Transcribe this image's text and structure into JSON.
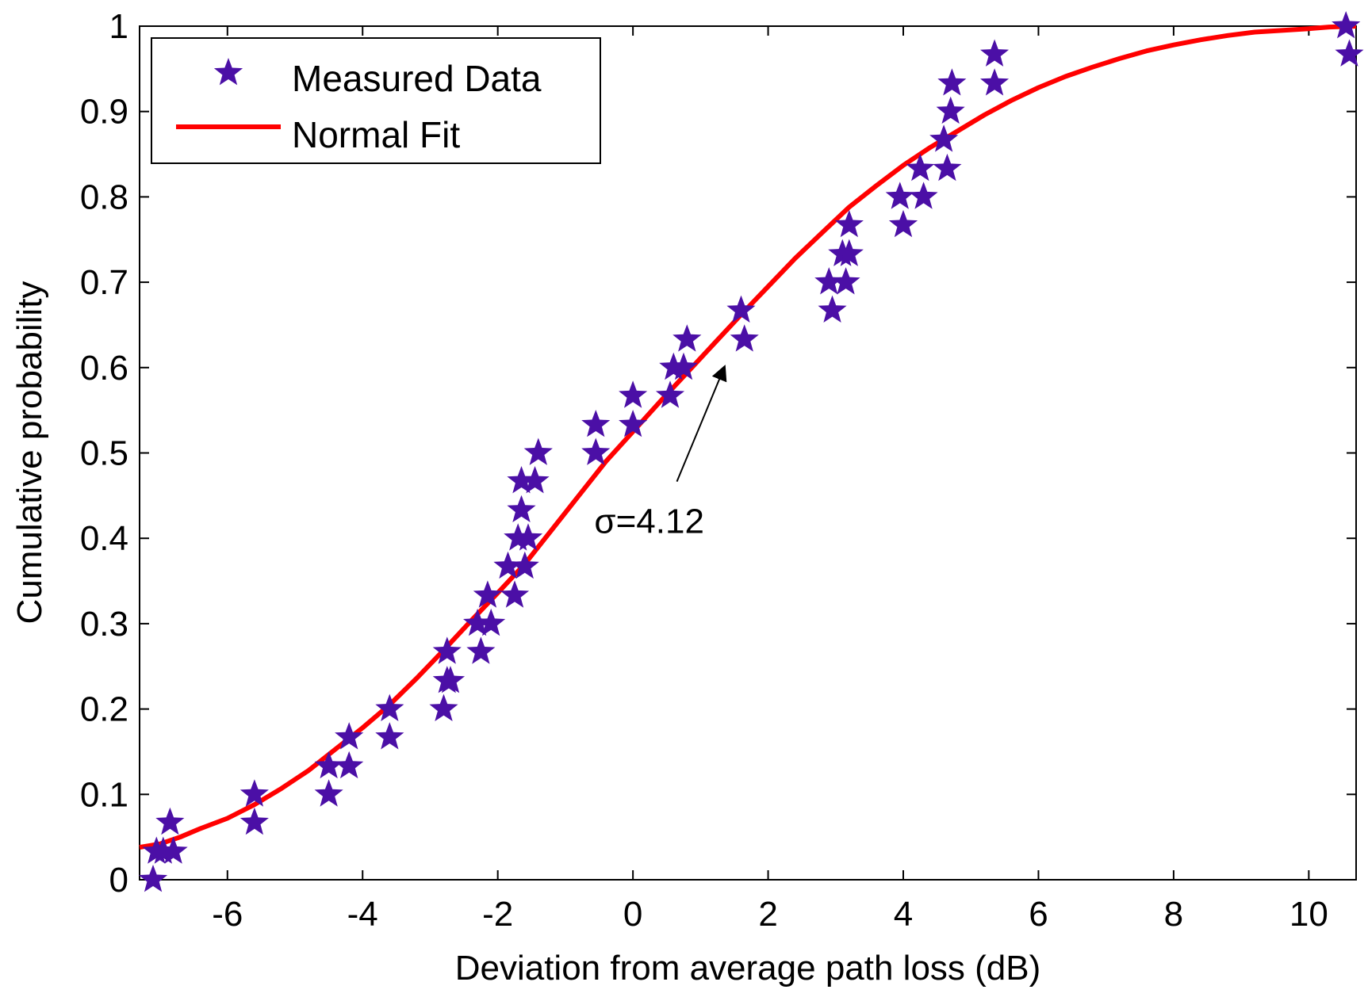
{
  "chart_data": {
    "type": "scatter",
    "title": "",
    "xlabel": "Deviation from average path loss (dB)",
    "ylabel": "Cumulative probability",
    "xlim": [
      -7.3,
      10.7
    ],
    "ylim": [
      0,
      1
    ],
    "xticks": [
      -6,
      -4,
      -2,
      0,
      2,
      4,
      6,
      8,
      10
    ],
    "yticks": [
      0,
      0.1,
      0.2,
      0.3,
      0.4,
      0.5,
      0.6,
      0.7,
      0.8,
      0.9,
      1
    ],
    "xtick_labels": [
      "-6",
      "-4",
      "-2",
      "0",
      "2",
      "4",
      "6",
      "8",
      "10"
    ],
    "ytick_labels": [
      "0",
      "0.1",
      "0.2",
      "0.3",
      "0.4",
      "0.5",
      "0.6",
      "0.7",
      "0.8",
      "0.9",
      "1"
    ],
    "grid": false,
    "legend_position": "top-left",
    "series": [
      {
        "name": "Measured Data",
        "kind": "scatter",
        "marker": "star",
        "color": "#4b0fa6",
        "x": [
          -7.1,
          -7.05,
          -6.95,
          -6.85,
          -6.8,
          -5.6,
          -5.6,
          -4.5,
          -4.5,
          -4.2,
          -4.2,
          -3.6,
          -3.6,
          -2.8,
          -2.75,
          -2.75,
          -2.7,
          -2.3,
          -2.25,
          -2.15,
          -2.1,
          -1.85,
          -1.75,
          -1.7,
          -1.65,
          -1.65,
          -1.6,
          -1.55,
          -1.45,
          -1.4,
          -0.55,
          -0.55,
          0,
          0,
          0.55,
          0.6,
          0.75,
          0.8,
          1.6,
          1.65,
          2.9,
          2.95,
          3.1,
          3.15,
          3.2,
          3.2,
          3.95,
          4.0,
          4.25,
          4.3,
          4.6,
          4.65,
          4.7,
          4.72,
          5.35,
          5.35,
          10.55,
          10.6
        ],
        "y": [
          0.0,
          0.033,
          0.033,
          0.067,
          0.033,
          0.1,
          0.067,
          0.133,
          0.1,
          0.167,
          0.133,
          0.2,
          0.167,
          0.2,
          0.233,
          0.267,
          0.233,
          0.3,
          0.267,
          0.333,
          0.3,
          0.367,
          0.333,
          0.4,
          0.433,
          0.467,
          0.367,
          0.4,
          0.467,
          0.5,
          0.533,
          0.5,
          0.567,
          0.533,
          0.567,
          0.6,
          0.6,
          0.633,
          0.667,
          0.633,
          0.7,
          0.667,
          0.733,
          0.7,
          0.767,
          0.733,
          0.8,
          0.767,
          0.833,
          0.8,
          0.867,
          0.833,
          0.9,
          0.933,
          0.967,
          0.933,
          1.0,
          0.967
        ]
      },
      {
        "name": "Normal Fit",
        "kind": "line",
        "color": "#ff0000",
        "x": [
          -7.3,
          -7.0,
          -6.7,
          -6.4,
          -6.0,
          -5.6,
          -5.2,
          -4.8,
          -4.4,
          -4.0,
          -3.6,
          -3.2,
          -2.8,
          -2.4,
          -2.0,
          -1.6,
          -1.2,
          -0.8,
          -0.4,
          0.0,
          0.4,
          0.8,
          1.2,
          1.6,
          2.0,
          2.4,
          2.8,
          3.2,
          3.6,
          4.0,
          4.4,
          4.8,
          5.2,
          5.6,
          6.0,
          6.4,
          6.8,
          7.2,
          7.6,
          8.0,
          8.4,
          8.8,
          9.2,
          9.6,
          10.0,
          10.3,
          10.7
        ],
        "y": [
          0.038,
          0.042,
          0.05,
          0.06,
          0.072,
          0.088,
          0.107,
          0.128,
          0.153,
          0.178,
          0.205,
          0.236,
          0.269,
          0.303,
          0.336,
          0.37,
          0.41,
          0.45,
          0.49,
          0.525,
          0.56,
          0.594,
          0.628,
          0.662,
          0.695,
          0.728,
          0.758,
          0.788,
          0.813,
          0.837,
          0.858,
          0.877,
          0.896,
          0.913,
          0.928,
          0.941,
          0.952,
          0.962,
          0.971,
          0.978,
          0.984,
          0.989,
          0.993,
          0.995,
          0.997,
          0.999,
          1.0
        ]
      }
    ],
    "annotations": [
      {
        "text": "σ=4.12",
        "x": 0.25,
        "y": 0.42,
        "arrow_to": [
          1.35,
          0.6
        ]
      }
    ]
  }
}
